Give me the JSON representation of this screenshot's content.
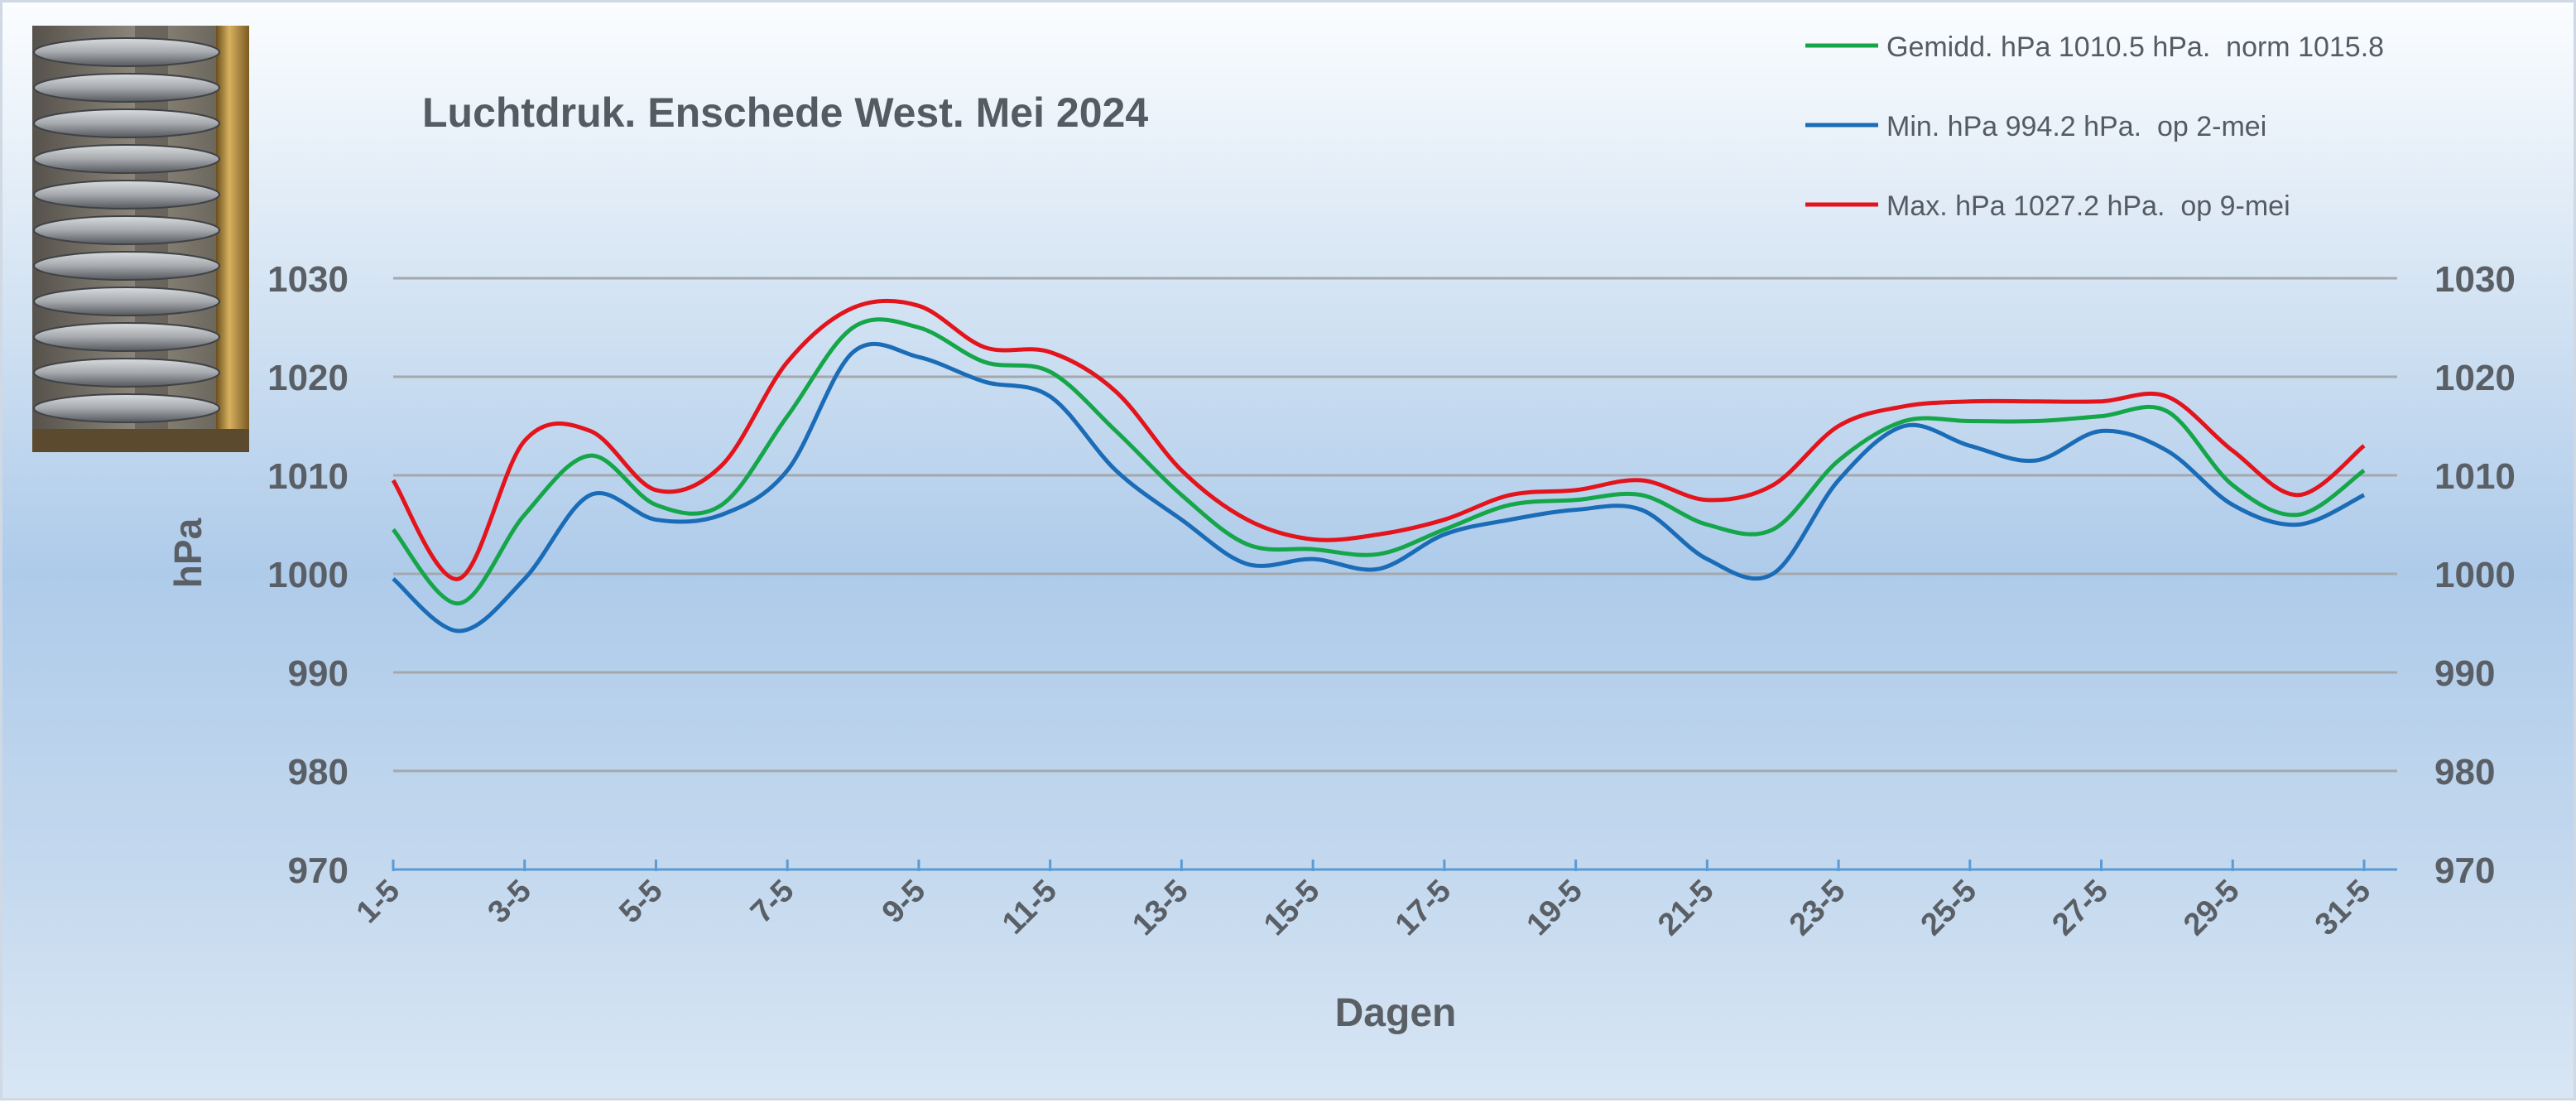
{
  "chart_data": {
    "type": "line",
    "title": "Luchtdruk. Enschede West. Mei 2024",
    "xlabel": "Dagen",
    "ylabel": "hPa",
    "ylim": [
      970,
      1030
    ],
    "yticks": [
      970,
      980,
      990,
      1000,
      1010,
      1020,
      1030
    ],
    "secondary_y_axis": true,
    "grid": true,
    "legend_position": "top-right",
    "x": [
      "1-5",
      "2-5",
      "3-5",
      "4-5",
      "5-5",
      "6-5",
      "7-5",
      "8-5",
      "9-5",
      "10-5",
      "11-5",
      "12-5",
      "13-5",
      "14-5",
      "15-5",
      "16-5",
      "17-5",
      "18-5",
      "19-5",
      "20-5",
      "21-5",
      "22-5",
      "23-5",
      "24-5",
      "25-5",
      "26-5",
      "27-5",
      "28-5",
      "29-5",
      "30-5",
      "31-5"
    ],
    "xtick_labels": [
      "1-5",
      "3-5",
      "5-5",
      "7-5",
      "9-5",
      "11-5",
      "13-5",
      "15-5",
      "17-5",
      "19-5",
      "21-5",
      "23-5",
      "25-5",
      "27-5",
      "29-5",
      "31-5"
    ],
    "series": [
      {
        "name": "Gemidd. hPa 1010.5 hPa.  norm 1015.8",
        "color": "#16a64a",
        "values": [
          1004.5,
          997.0,
          1006.0,
          1012.0,
          1007.0,
          1007.0,
          1016.0,
          1025.0,
          1025.0,
          1021.5,
          1020.5,
          1014.5,
          1008.0,
          1003.0,
          1002.5,
          1002.0,
          1004.5,
          1007.0,
          1007.5,
          1008.0,
          1005.0,
          1004.5,
          1011.5,
          1015.5,
          1015.5,
          1015.5,
          1016.0,
          1016.5,
          1009.0,
          1006.0,
          1010.5
        ]
      },
      {
        "name": "Min. hPa 994.2 hPa.  op 2-mei",
        "color": "#1b6cb7",
        "values": [
          999.5,
          994.2,
          999.5,
          1008.0,
          1005.5,
          1006.0,
          1010.5,
          1022.5,
          1022.0,
          1019.5,
          1018.0,
          1010.5,
          1005.5,
          1001.0,
          1001.5,
          1000.5,
          1004.0,
          1005.5,
          1006.5,
          1006.5,
          1001.5,
          1000.0,
          1009.5,
          1015.0,
          1013.0,
          1011.5,
          1014.5,
          1012.5,
          1007.0,
          1005.0,
          1008.0
        ]
      },
      {
        "name": "Max. hPa 1027.2 hPa.  op 9-mei",
        "color": "#e3141b",
        "values": [
          1009.5,
          999.5,
          1013.5,
          1014.5,
          1008.5,
          1011.0,
          1021.5,
          1027.0,
          1027.2,
          1023.0,
          1022.5,
          1018.5,
          1010.5,
          1005.5,
          1003.5,
          1004.0,
          1005.5,
          1008.0,
          1008.5,
          1009.5,
          1007.5,
          1009.0,
          1015.0,
          1017.0,
          1017.5,
          1017.5,
          1017.5,
          1018.0,
          1012.5,
          1008.0,
          1013.0
        ]
      }
    ]
  }
}
